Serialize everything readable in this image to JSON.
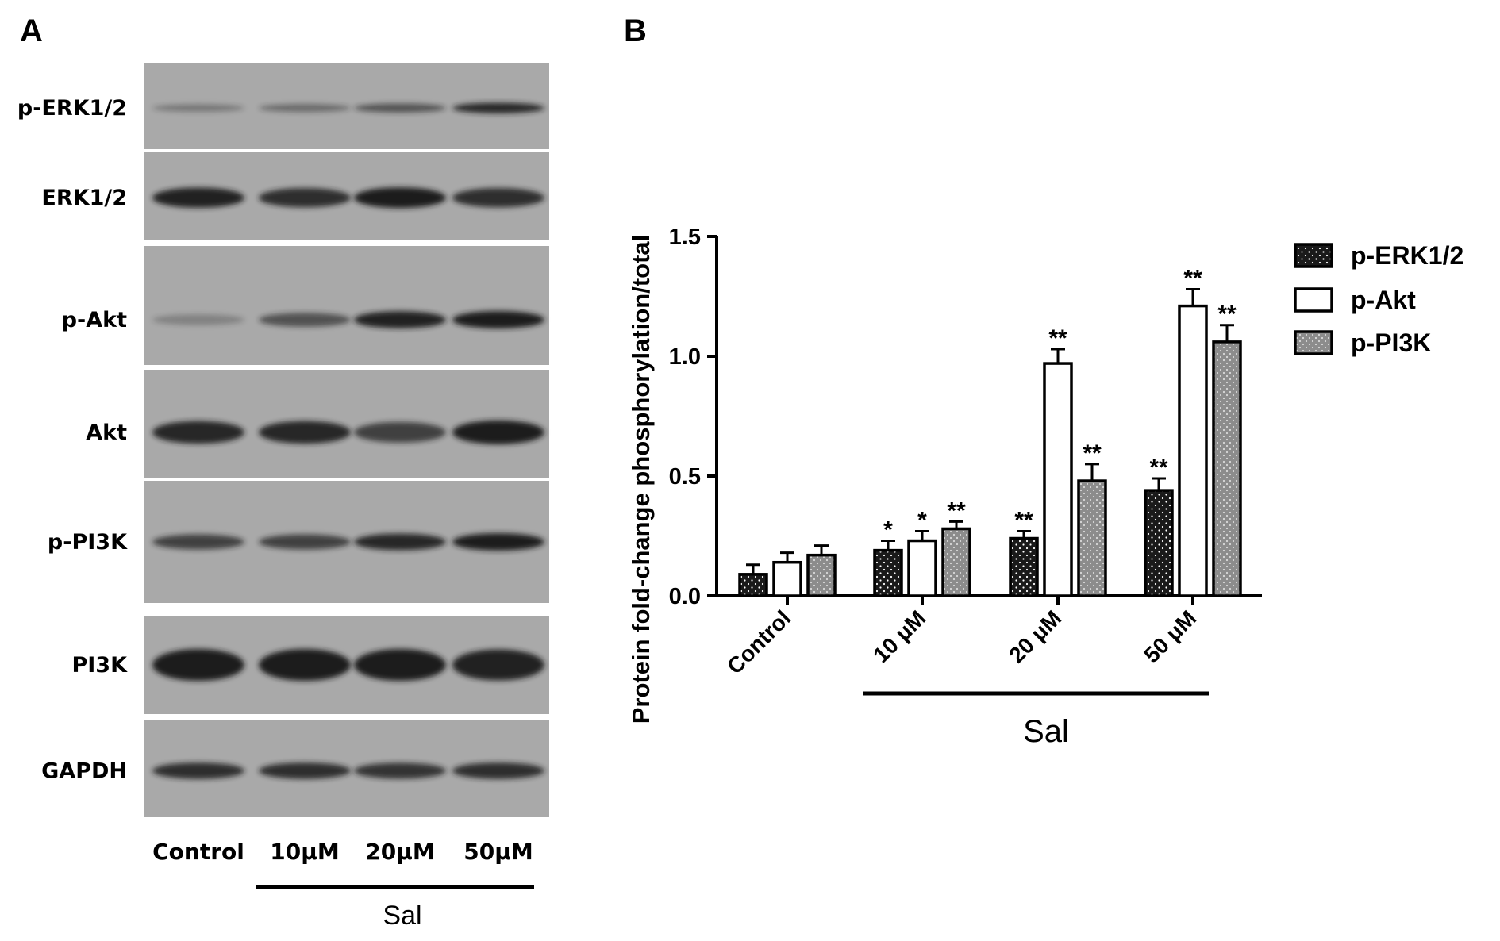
{
  "panel_a": {
    "letter": "A",
    "blot_rows": [
      "p-ERK1/2",
      "ERK1/2",
      "p-Akt",
      "Akt",
      "p-PI3K",
      "PI3K",
      "GAPDH"
    ],
    "lanes": [
      "Control",
      "10μM",
      "20μM",
      "50μM"
    ],
    "group_label": "Sal"
  },
  "panel_b": {
    "letter": "B",
    "group_label": "Sal"
  },
  "colors": {
    "erk": "#1a1a1a",
    "akt": "#ffffff",
    "pi3k": "#8c8c8c",
    "blot_bg": "#a9a9a9",
    "band": "#1c1c1c"
  },
  "chart_data": {
    "type": "bar",
    "categories": [
      "Control",
      "10 μM",
      "20 μM",
      "50 μM"
    ],
    "ylabel": "Protein fold-change phosphorylation/total",
    "xlabel": "",
    "ylim": [
      0,
      1.5
    ],
    "yticks": [
      "0.0",
      "0.5",
      "1.0",
      "1.5"
    ],
    "legend_position": "right",
    "series": [
      {
        "name": "p-ERK1/2",
        "pattern": "black-dotted",
        "values": [
          0.09,
          0.19,
          0.24,
          0.44
        ],
        "errors": [
          0.04,
          0.04,
          0.03,
          0.05
        ],
        "stars": [
          "",
          "*",
          "**",
          "**"
        ]
      },
      {
        "name": "p-Akt",
        "pattern": "white",
        "values": [
          0.14,
          0.23,
          0.97,
          1.21
        ],
        "errors": [
          0.04,
          0.04,
          0.06,
          0.07
        ],
        "stars": [
          "",
          "*",
          "**",
          "**"
        ]
      },
      {
        "name": "p-PI3K",
        "pattern": "gray-dotted",
        "values": [
          0.17,
          0.28,
          0.48,
          1.06
        ],
        "errors": [
          0.04,
          0.03,
          0.07,
          0.07
        ],
        "stars": [
          "",
          "**",
          "**",
          "**"
        ]
      }
    ]
  }
}
